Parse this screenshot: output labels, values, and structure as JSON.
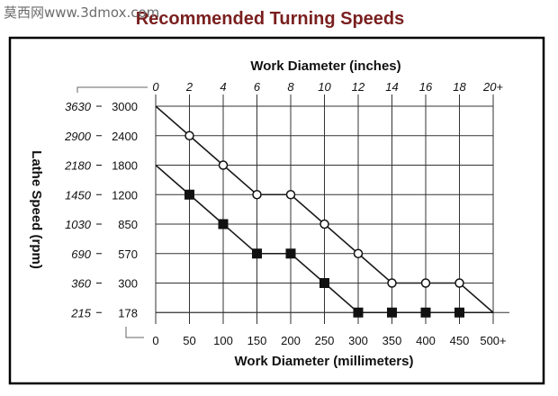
{
  "watermark": "莫西网www.3dmox.com",
  "chart_data": {
    "type": "line",
    "title": "Recommended Turning Speeds",
    "x_top": {
      "label": "Work Diameter (inches)",
      "ticks": [
        "0",
        "2",
        "4",
        "6",
        "8",
        "10",
        "12",
        "14",
        "16",
        "18",
        "20+"
      ]
    },
    "x_bottom": {
      "label": "Work Diameter (millimeters)",
      "ticks": [
        "0",
        "50",
        "100",
        "150",
        "200",
        "250",
        "300",
        "350",
        "400",
        "450",
        "500+"
      ]
    },
    "y": {
      "label": "Lathe Speed (rpm)",
      "italic_ticks": [
        "3630",
        "2900",
        "2180",
        "1450",
        "1030",
        "690",
        "360",
        "215"
      ],
      "normal_ticks": [
        "3000",
        "2400",
        "1800",
        "1200",
        "850",
        "570",
        "300",
        "178"
      ]
    },
    "series": [
      {
        "marker": "open-circle",
        "x_unit": "inches",
        "x": [
          0,
          2,
          4,
          6,
          8,
          10,
          12,
          14,
          16,
          18,
          20
        ],
        "y_rpm": [
          3630,
          2900,
          2180,
          1450,
          1450,
          1030,
          690,
          360,
          360,
          360,
          215
        ],
        "marked": [
          false,
          true,
          true,
          true,
          true,
          true,
          true,
          true,
          true,
          true,
          false
        ]
      },
      {
        "marker": "filled-square",
        "x_unit": "millimeters",
        "x": [
          0,
          50,
          100,
          150,
          200,
          250,
          300,
          350,
          400,
          450,
          500
        ],
        "y_rpm": [
          1800,
          1200,
          850,
          570,
          570,
          300,
          178,
          178,
          178,
          178,
          178
        ],
        "marked": [
          false,
          true,
          true,
          true,
          true,
          true,
          true,
          true,
          true,
          true,
          false
        ]
      }
    ],
    "grid": true,
    "colors": {
      "title": "#7a1f1f",
      "border": "#000000",
      "grid": "#333333",
      "line": "#1a1a1a"
    }
  }
}
